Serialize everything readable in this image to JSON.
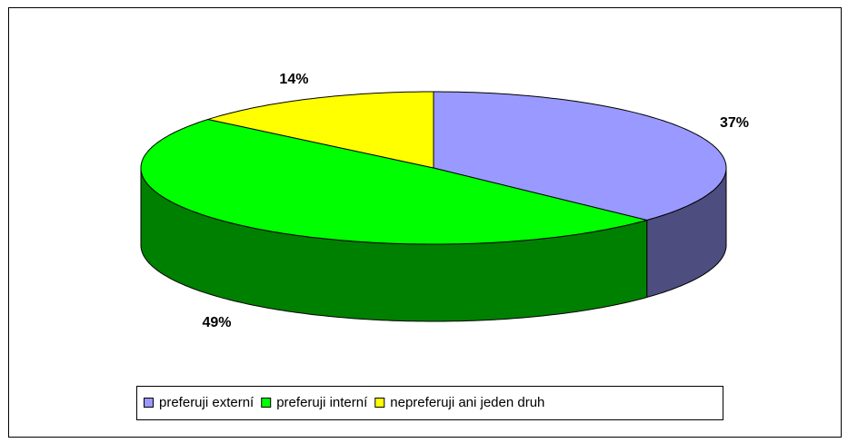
{
  "chart_data": {
    "type": "pie",
    "categories": [
      "preferuji externí",
      "preferuji interní",
      "nepreferuji ani jeden druh"
    ],
    "values": [
      37,
      49,
      14
    ],
    "value_labels": [
      "37%",
      "49%",
      "14%"
    ],
    "colors": [
      "#9999ff",
      "#00ff00",
      "#ffff00"
    ],
    "legend": "bottom"
  }
}
